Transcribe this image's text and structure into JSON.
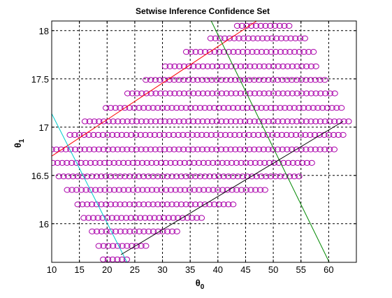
{
  "chart_data": {
    "type": "scatter",
    "title": "Setwise Inference Confidence Set",
    "xlabel": {
      "base": "θ",
      "sub": "0"
    },
    "ylabel": {
      "base": "θ",
      "sub": "1"
    },
    "xlim": [
      10,
      65
    ],
    "ylim": [
      15.6,
      18.1
    ],
    "xticks": [
      10,
      15,
      20,
      25,
      30,
      35,
      40,
      45,
      50,
      55,
      60
    ],
    "yticks": [
      16,
      16.5,
      17,
      17.5,
      18
    ],
    "ytick_labels": [
      "16",
      "16.5",
      "17",
      "17.5",
      "18"
    ],
    "grid": true,
    "marker": "circle",
    "marker_color": "#aa00aa",
    "x_step": 0.85,
    "rows": [
      {
        "y": 18.05,
        "x_min": 43.5,
        "x_max": 53.5
      },
      {
        "y": 17.92,
        "x_min": 38.7,
        "x_max": 55.8
      },
      {
        "y": 17.78,
        "x_min": 34.3,
        "x_max": 57.5
      },
      {
        "y": 17.63,
        "x_min": 30.5,
        "x_max": 58.5
      },
      {
        "y": 17.49,
        "x_min": 27.0,
        "x_max": 59.8
      },
      {
        "y": 17.35,
        "x_min": 23.7,
        "x_max": 61.3
      },
      {
        "y": 17.2,
        "x_min": 19.8,
        "x_max": 62.3
      },
      {
        "y": 17.06,
        "x_min": 16.0,
        "x_max": 64.3
      },
      {
        "y": 16.92,
        "x_min": 13.3,
        "x_max": 63.3
      },
      {
        "y": 16.77,
        "x_min": 10.0,
        "x_max": 61.0
      },
      {
        "y": 16.63,
        "x_min": 10.2,
        "x_max": 57.3
      },
      {
        "y": 16.49,
        "x_min": 11.3,
        "x_max": 55.3
      },
      {
        "y": 16.35,
        "x_min": 12.8,
        "x_max": 48.7
      },
      {
        "y": 16.2,
        "x_min": 14.7,
        "x_max": 43.0
      },
      {
        "y": 16.06,
        "x_min": 15.8,
        "x_max": 37.7
      },
      {
        "y": 15.92,
        "x_min": 17.3,
        "x_max": 33.2
      },
      {
        "y": 15.77,
        "x_min": 18.5,
        "x_max": 27.8
      },
      {
        "y": 15.63,
        "x_min": 19.3,
        "x_max": 23.7
      }
    ],
    "lines": [
      {
        "name": "red-line",
        "color": "#ff0000",
        "points": [
          [
            10,
            16.7
          ],
          [
            47,
            18.1
          ]
        ]
      },
      {
        "name": "cyan-line",
        "color": "#00cccc",
        "points": [
          [
            10,
            17.14
          ],
          [
            23.6,
            15.6
          ]
        ]
      },
      {
        "name": "green-line",
        "color": "#008800",
        "points": [
          [
            38.8,
            18.1
          ],
          [
            60.1,
            15.6
          ]
        ]
      },
      {
        "name": "black-line",
        "color": "#000000",
        "points": [
          [
            22.5,
            15.68
          ],
          [
            62.6,
            17.06
          ]
        ]
      }
    ]
  }
}
